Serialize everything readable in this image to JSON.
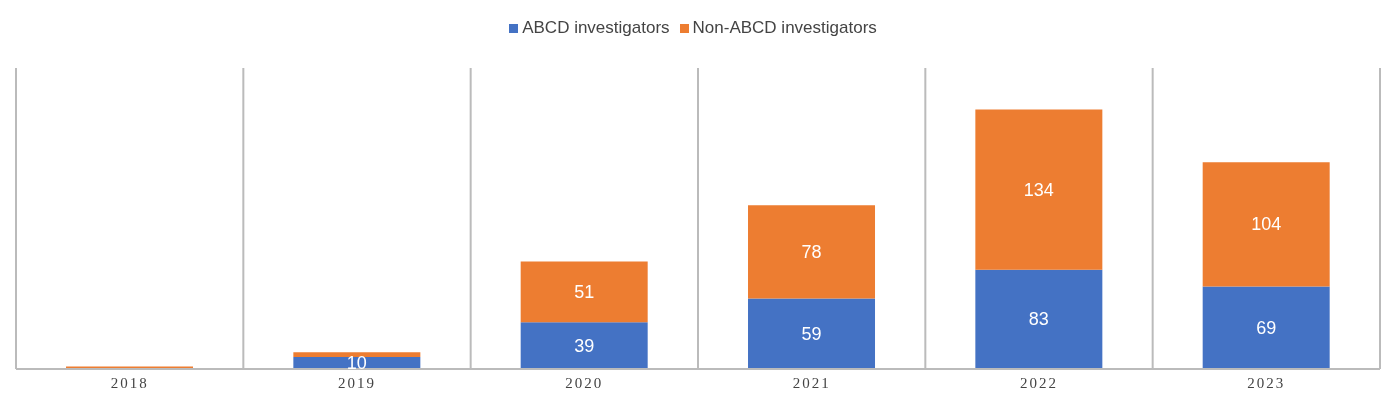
{
  "chart_data": {
    "type": "bar",
    "stacked": true,
    "categories": [
      "2018",
      "2019",
      "2020",
      "2021",
      "2022",
      "2023"
    ],
    "series": [
      {
        "name": "ABCD investigators",
        "color": "#4472c4",
        "values": [
          0,
          10,
          39,
          59,
          83,
          69
        ],
        "value_labels": [
          null,
          "10",
          "39",
          "59",
          "83",
          "69"
        ]
      },
      {
        "name": "Non-ABCD investigators",
        "color": "#ed7d31",
        "values": [
          2,
          4,
          51,
          78,
          134,
          104
        ],
        "value_labels": [
          null,
          null,
          "51",
          "78",
          "134",
          "104"
        ]
      }
    ],
    "grid": "x",
    "legend": "top",
    "tick_labels": "x"
  }
}
